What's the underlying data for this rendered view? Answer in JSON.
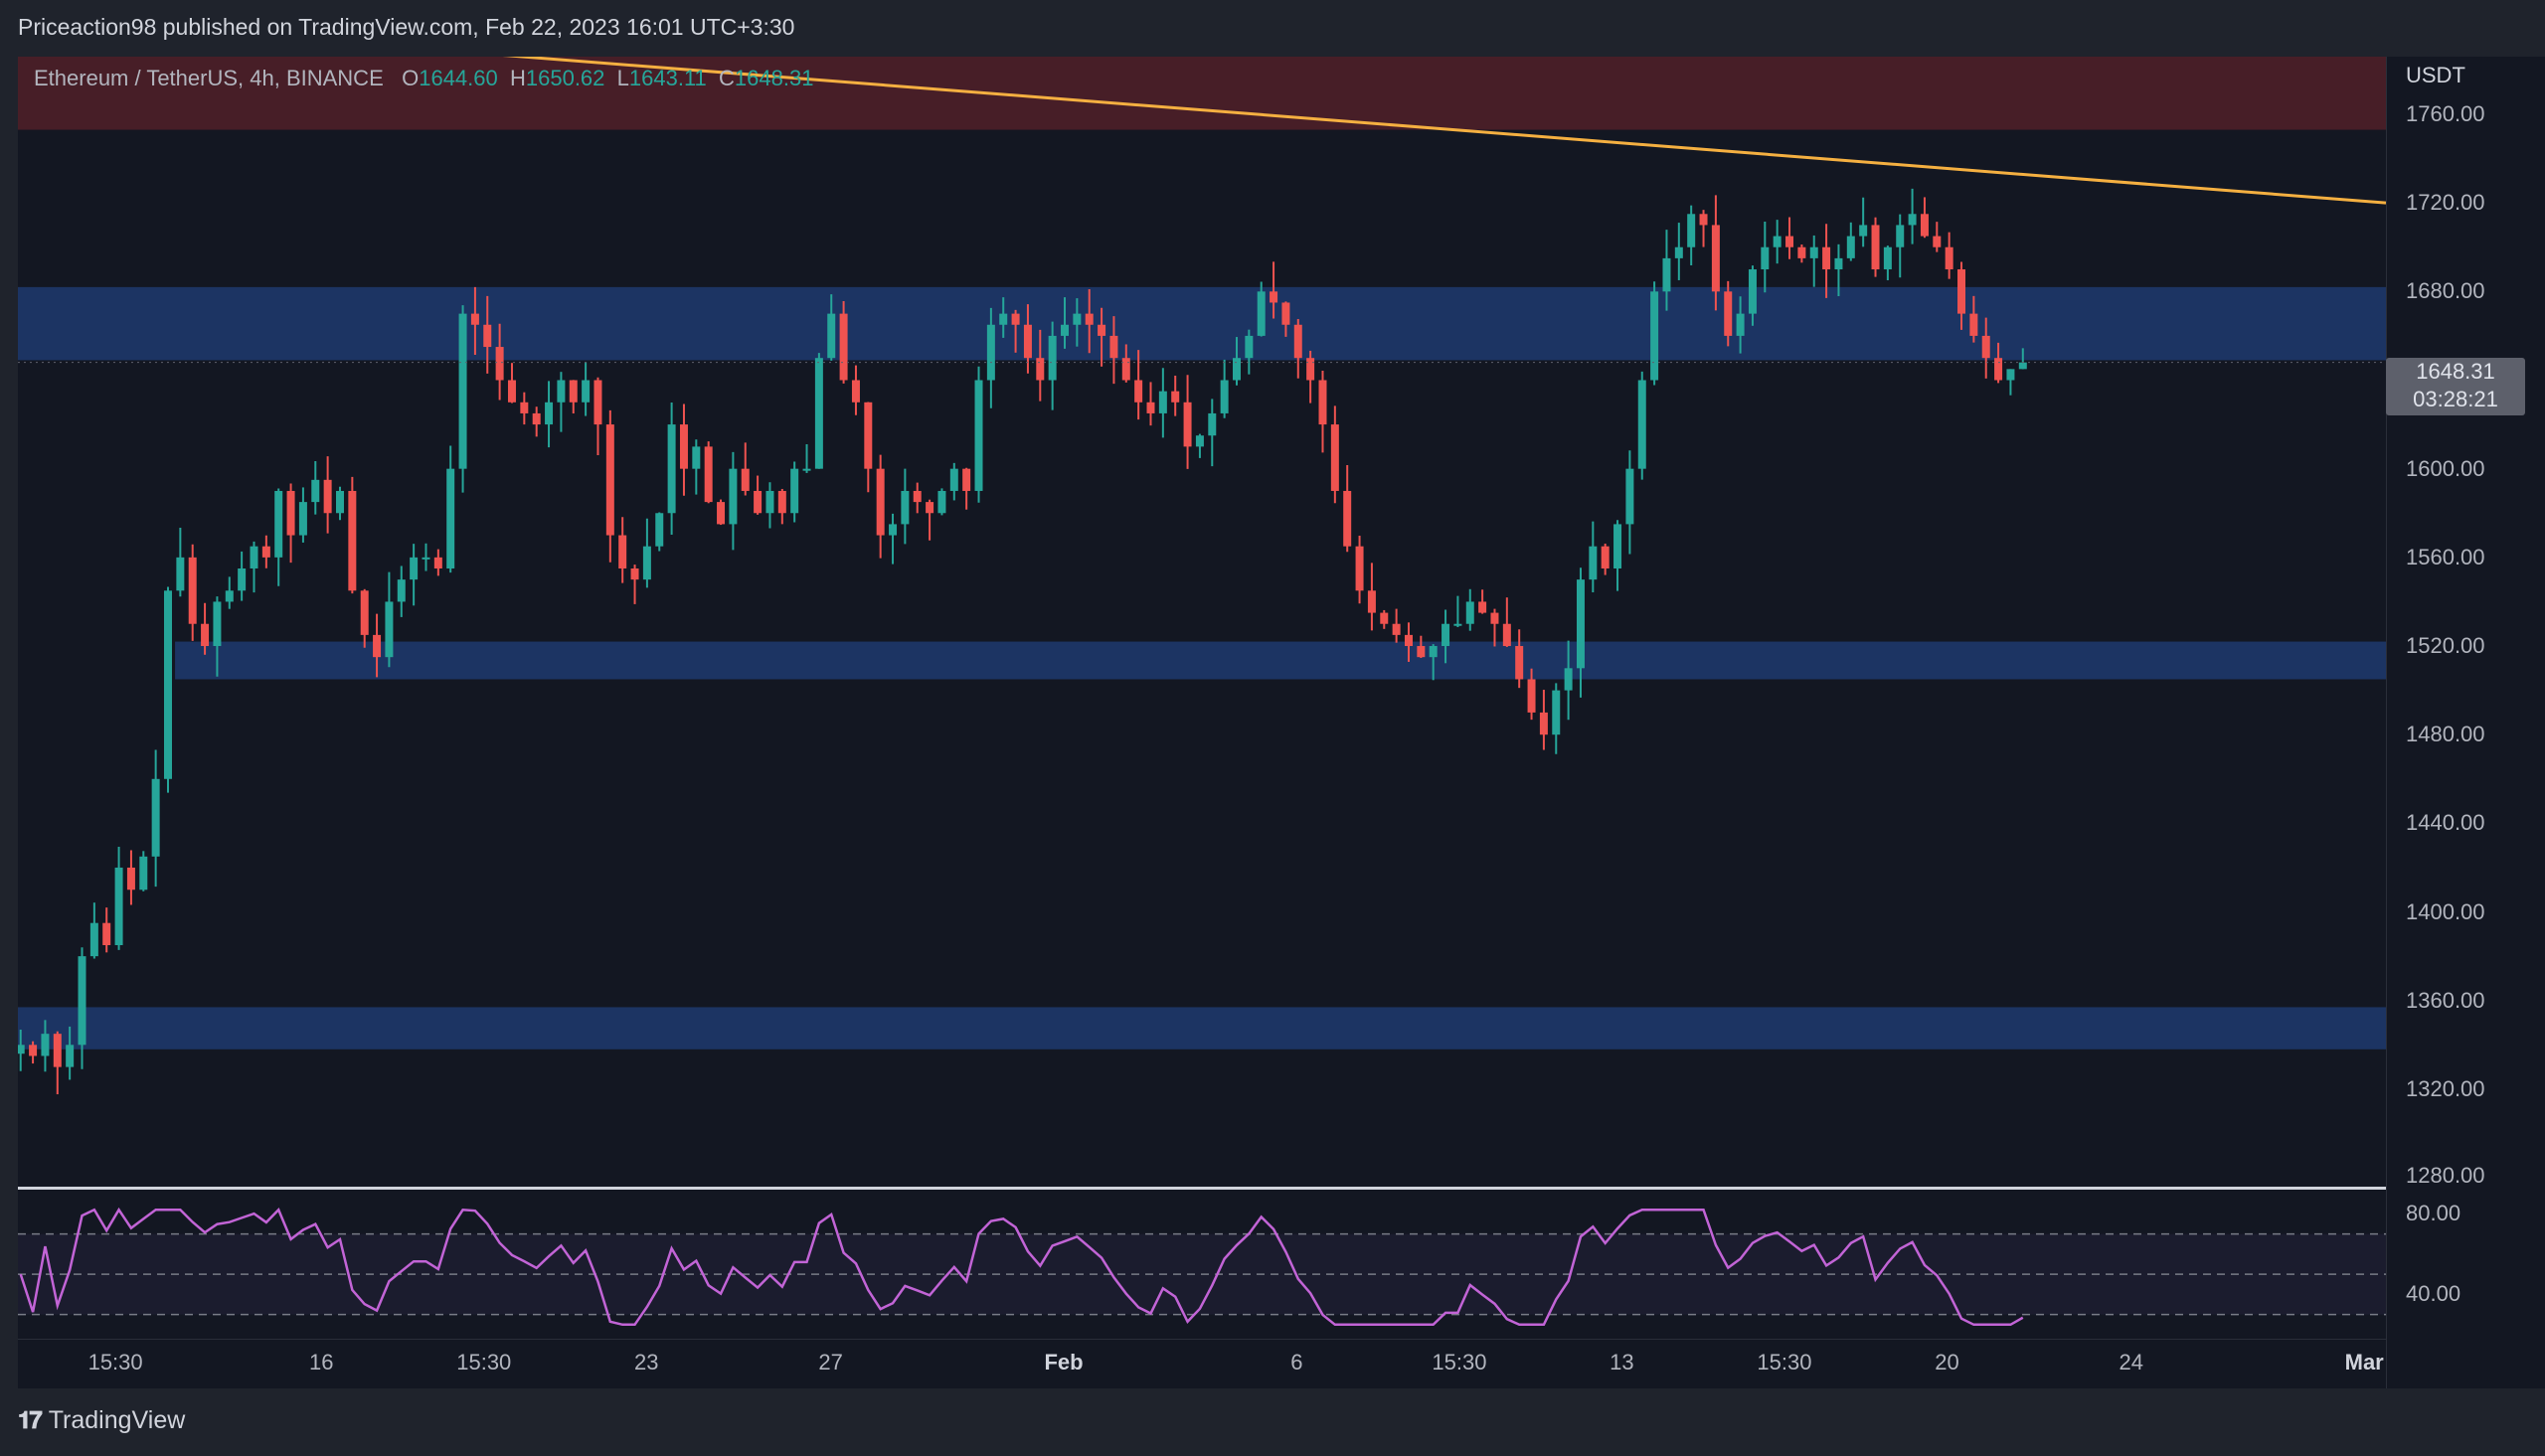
{
  "header": {
    "publisher_text": "Priceaction98 published on TradingView.com, Feb 22, 2023 16:01 UTC+3:30"
  },
  "legend": {
    "symbol": "Ethereum / TetherUS, 4h, BINANCE",
    "o_label": "O",
    "o_value": "1644.60",
    "h_label": "H",
    "h_value": "1650.62",
    "l_label": "L",
    "l_value": "1643.11",
    "c_label": "C",
    "c_value": "1648.31"
  },
  "price_tag": {
    "price": "1648.31",
    "countdown": "03:28:21"
  },
  "footer": {
    "brand": "TradingView",
    "logo_icon": "tradingview-logo-icon"
  },
  "colors": {
    "up": "#26a69a",
    "down": "#ef5350",
    "zone_blue": "#1e3a6e",
    "zone_red": "#4a1f28",
    "trendline": "#f5b041",
    "rsi": "#c264d6"
  },
  "chart_data": [
    {
      "type": "candlestick",
      "currency": "USDT",
      "y_ticks": [
        "1760.00",
        "1720.00",
        "1680.00",
        "1640.00",
        "1600.00",
        "1560.00",
        "1520.00",
        "1480.00",
        "1440.00",
        "1400.00",
        "1360.00",
        "1320.00",
        "1280.00"
      ],
      "y_tick_values": [
        1760,
        1720,
        1680,
        1640,
        1600,
        1560,
        1520,
        1480,
        1440,
        1400,
        1360,
        1320,
        1280
      ],
      "ylim": [
        1276,
        1786
      ],
      "x_ticks": [
        "15:30",
        "16",
        "15:30",
        "23",
        "27",
        "Feb",
        "6",
        "15:30",
        "13",
        "15:30",
        "20",
        "24",
        "Mar"
      ],
      "x_tick_positions": [
        2.2,
        6.0,
        9.0,
        12.0,
        15.4,
        19.7,
        24.0,
        27.0,
        30.0,
        33.0,
        36.0,
        39.4,
        43.7
      ],
      "x_tick_bold": [
        false,
        false,
        false,
        false,
        false,
        true,
        false,
        false,
        false,
        false,
        false,
        false,
        true
      ],
      "xlim": [
        0.4,
        44.1
      ],
      "zones": [
        {
          "y1": 1788,
          "y2": 1753,
          "kind": "red"
        },
        {
          "y1": 1682,
          "y2": 1649,
          "kind": "blue"
        },
        {
          "y1": 1522,
          "y2": 1505,
          "kind": "blue"
        },
        {
          "y1": 1357,
          "y2": 1338,
          "kind": "blue"
        }
      ],
      "trendline": {
        "x1": 2.4,
        "y1": 1800,
        "x2": 44.1,
        "y2": 1720
      },
      "key_closes": [
        1340,
        1335,
        1345,
        1330,
        1340,
        1380,
        1395,
        1385,
        1420,
        1410,
        1425,
        1460,
        1545,
        1560,
        1530,
        1520,
        1540,
        1545,
        1555,
        1565,
        1560,
        1590,
        1570,
        1585,
        1595,
        1580,
        1590,
        1545,
        1525,
        1515,
        1540,
        1550,
        1560,
        1560,
        1555,
        1600,
        1670,
        1665,
        1655,
        1640,
        1630,
        1625,
        1620,
        1630,
        1640,
        1630,
        1640,
        1620,
        1570,
        1555,
        1550,
        1565,
        1580,
        1620,
        1600,
        1610,
        1585,
        1575,
        1600,
        1590,
        1580,
        1590,
        1580,
        1600,
        1600,
        1650,
        1670,
        1640,
        1630,
        1600,
        1570,
        1575,
        1590,
        1585,
        1580,
        1590,
        1600,
        1590,
        1640,
        1665,
        1670,
        1665,
        1650,
        1640,
        1660,
        1665,
        1670,
        1665,
        1660,
        1650,
        1640,
        1630,
        1625,
        1635,
        1630,
        1610,
        1615,
        1625,
        1640,
        1650,
        1660,
        1680,
        1675,
        1665,
        1650,
        1640,
        1620,
        1590,
        1565,
        1545,
        1535,
        1530,
        1525,
        1520,
        1515,
        1520,
        1530,
        1530,
        1540,
        1535,
        1530,
        1520,
        1505,
        1490,
        1480,
        1500,
        1510,
        1550,
        1565,
        1555,
        1575,
        1600,
        1640,
        1680,
        1695,
        1700,
        1715,
        1710,
        1680,
        1660,
        1670,
        1690,
        1700,
        1705,
        1700,
        1695,
        1700,
        1690,
        1695,
        1705,
        1710,
        1690,
        1700,
        1710,
        1715,
        1705,
        1700,
        1690,
        1670,
        1660,
        1650,
        1640,
        1645,
        1648
      ]
    },
    {
      "type": "line",
      "indicator": "RSI",
      "y_ticks": [
        "80.00",
        "40.00"
      ],
      "y_tick_values": [
        80,
        40
      ],
      "dashed_levels": [
        70,
        50,
        30
      ],
      "ylim": [
        18,
        92
      ]
    }
  ]
}
